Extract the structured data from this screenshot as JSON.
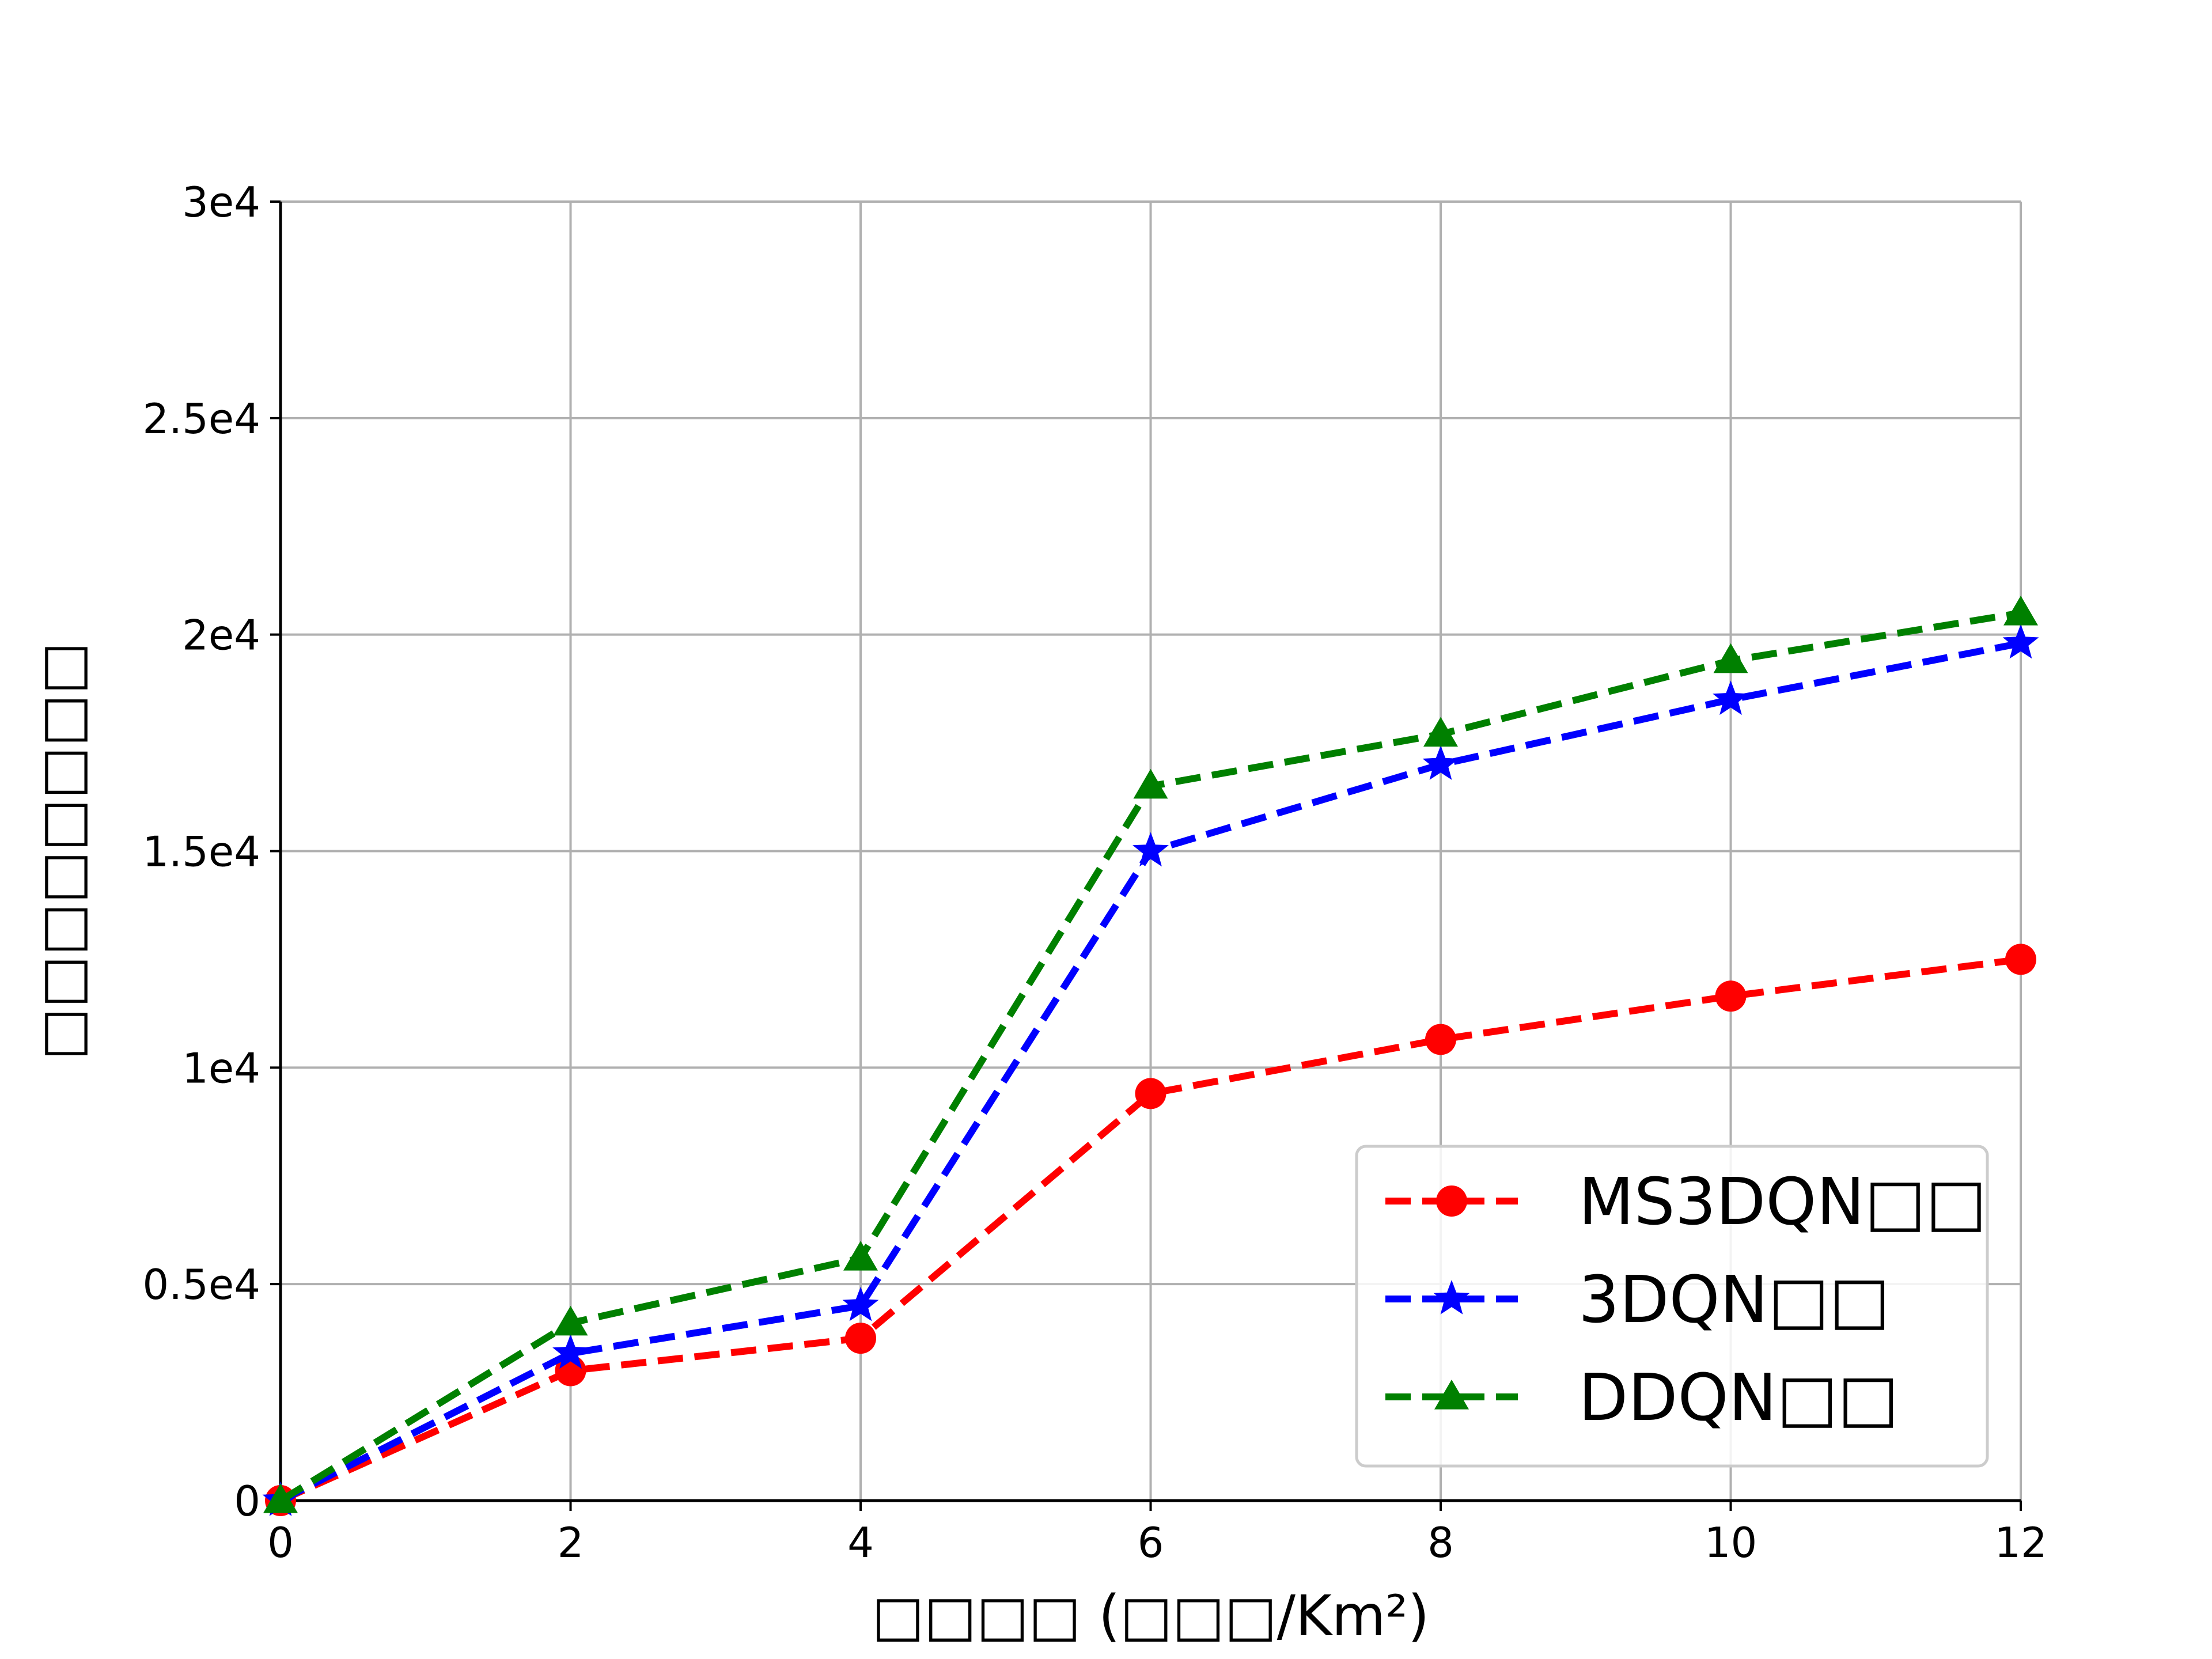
{
  "chart_data": {
    "type": "line",
    "xlabel": "□□□□ (□□□/Km²)",
    "ylabel": "□□□□□□□□",
    "x": [
      0,
      2,
      4,
      6,
      8,
      10,
      12
    ],
    "xlim": [
      0,
      12
    ],
    "ylim": [
      0,
      30000
    ],
    "xticks": [
      0,
      2,
      4,
      6,
      8,
      10,
      12
    ],
    "yticks": [
      {
        "value": 0,
        "label": "0"
      },
      {
        "value": 5000,
        "label": "0.5e4"
      },
      {
        "value": 10000,
        "label": "1e4"
      },
      {
        "value": 15000,
        "label": "1.5e4"
      },
      {
        "value": 20000,
        "label": "2e4"
      },
      {
        "value": 25000,
        "label": "2.5e4"
      },
      {
        "value": 30000,
        "label": "3e4"
      }
    ],
    "grid": true,
    "legend_position": "lower-right",
    "series": [
      {
        "name": "MS3DQN□□",
        "color": "#ff0000",
        "marker": "circle",
        "linestyle": "dashed",
        "values": [
          0,
          3000,
          3750,
          9400,
          10650,
          11650,
          12500
        ]
      },
      {
        "name": "3DQN□□",
        "color": "#0000ff",
        "marker": "star",
        "linestyle": "dashed",
        "values": [
          0,
          3400,
          4500,
          15000,
          17000,
          18500,
          19800
        ]
      },
      {
        "name": "DDQN□□",
        "color": "#008000",
        "marker": "triangle",
        "linestyle": "dashed",
        "values": [
          0,
          4100,
          5600,
          16500,
          17700,
          19400,
          20500
        ]
      }
    ]
  }
}
